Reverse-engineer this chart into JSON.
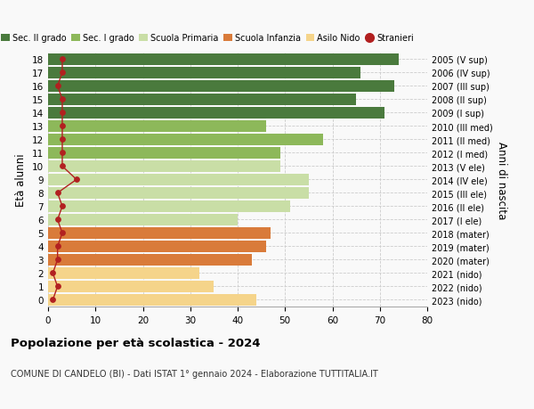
{
  "ages": [
    0,
    1,
    2,
    3,
    4,
    5,
    6,
    7,
    8,
    9,
    10,
    11,
    12,
    13,
    14,
    15,
    16,
    17,
    18
  ],
  "right_labels": [
    "2023 (nido)",
    "2022 (nido)",
    "2021 (nido)",
    "2020 (mater)",
    "2019 (mater)",
    "2018 (mater)",
    "2017 (I ele)",
    "2016 (II ele)",
    "2015 (III ele)",
    "2014 (IV ele)",
    "2013 (V ele)",
    "2012 (I med)",
    "2011 (II med)",
    "2010 (III med)",
    "2009 (I sup)",
    "2008 (II sup)",
    "2007 (III sup)",
    "2006 (IV sup)",
    "2005 (V sup)"
  ],
  "bar_values": [
    44,
    35,
    32,
    43,
    46,
    47,
    40,
    51,
    55,
    55,
    49,
    49,
    58,
    46,
    71,
    65,
    73,
    66,
    74
  ],
  "bar_colors": [
    "#f5d48a",
    "#f5d48a",
    "#f5d48a",
    "#d97b3a",
    "#d97b3a",
    "#d97b3a",
    "#c9dea6",
    "#c9dea6",
    "#c9dea6",
    "#c9dea6",
    "#c9dea6",
    "#8db85a",
    "#8db85a",
    "#8db85a",
    "#4a7a3d",
    "#4a7a3d",
    "#4a7a3d",
    "#4a7a3d",
    "#4a7a3d"
  ],
  "stranieri_values": [
    1,
    2,
    1,
    2,
    2,
    3,
    2,
    3,
    2,
    6,
    3,
    3,
    3,
    3,
    3,
    3,
    2,
    3,
    3
  ],
  "xlim": [
    0,
    80
  ],
  "ylabel": "Età alunni",
  "right_ylabel": "Anni di nascita",
  "title": "Popolazione per età scolastica - 2024",
  "subtitle": "COMUNE DI CANDELO (BI) - Dati ISTAT 1° gennaio 2024 - Elaborazione TUTTITALIA.IT",
  "legend_labels": [
    "Sec. II grado",
    "Sec. I grado",
    "Scuola Primaria",
    "Scuola Infanzia",
    "Asilo Nido",
    "Stranieri"
  ],
  "legend_colors": [
    "#4a7a3d",
    "#8db85a",
    "#c9dea6",
    "#d97b3a",
    "#f5d48a",
    "#b22020"
  ],
  "bg_color": "#f9f9f9",
  "grid_color": "#cccccc",
  "stranieri_color": "#b22020"
}
